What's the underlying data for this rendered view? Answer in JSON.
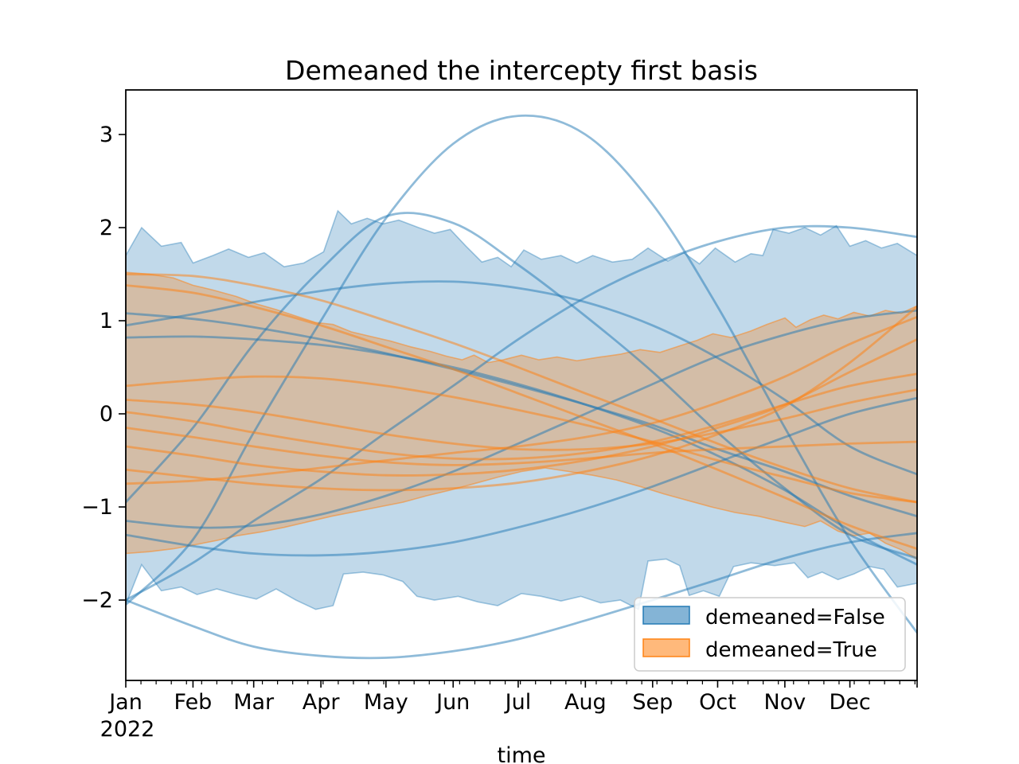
{
  "title": "Demeaned the intercepty first basis",
  "xlabel": "time",
  "x_year_label": "2022",
  "legend": {
    "items": [
      {
        "label": "demeaned=False",
        "color": "#1f77b4"
      },
      {
        "label": "demeaned=True",
        "color": "#ff7f0e"
      }
    ]
  },
  "chart_data": {
    "type": "area",
    "title": "Demeaned the intercepty first basis",
    "xlabel": "time",
    "x_axis": {
      "year": "2022",
      "tick_labels": [
        "Jan",
        "Feb",
        "Mar",
        "Apr",
        "May",
        "Jun",
        "Jul",
        "Aug",
        "Sep",
        "Oct",
        "Nov",
        "Dec"
      ],
      "month_start_days": [
        0,
        31,
        59,
        90,
        120,
        151,
        181,
        212,
        243,
        273,
        304,
        334,
        365
      ],
      "days_in_year": 365,
      "minor_tick_interval_days": 7
    },
    "y_axis": {
      "ticks": [
        -2,
        -1,
        0,
        1,
        2,
        3
      ],
      "view_range": [
        -2.86,
        3.48
      ],
      "grid": false
    },
    "colors": {
      "false_series": "#1f77b4",
      "true_series": "#ff7f0e"
    },
    "legend_position": "lower right",
    "bands": [
      {
        "name": "demeaned=False",
        "color": "#1f77b4",
        "fill_alpha": 0.28,
        "edge_alpha": 0.4,
        "upper": [
          [
            0,
            1.7
          ],
          [
            0.02,
            2.0
          ],
          [
            0.045,
            1.8
          ],
          [
            0.07,
            1.84
          ],
          [
            0.085,
            1.62
          ],
          [
            0.11,
            1.7
          ],
          [
            0.13,
            1.77
          ],
          [
            0.155,
            1.68
          ],
          [
            0.175,
            1.73
          ],
          [
            0.2,
            1.58
          ],
          [
            0.225,
            1.62
          ],
          [
            0.25,
            1.74
          ],
          [
            0.268,
            2.18
          ],
          [
            0.285,
            2.04
          ],
          [
            0.305,
            2.1
          ],
          [
            0.325,
            2.04
          ],
          [
            0.345,
            2.08
          ],
          [
            0.37,
            2.0
          ],
          [
            0.39,
            1.94
          ],
          [
            0.41,
            1.98
          ],
          [
            0.43,
            1.8
          ],
          [
            0.45,
            1.63
          ],
          [
            0.47,
            1.68
          ],
          [
            0.487,
            1.58
          ],
          [
            0.503,
            1.76
          ],
          [
            0.525,
            1.66
          ],
          [
            0.55,
            1.7
          ],
          [
            0.57,
            1.62
          ],
          [
            0.59,
            1.7
          ],
          [
            0.615,
            1.63
          ],
          [
            0.64,
            1.66
          ],
          [
            0.66,
            1.78
          ],
          [
            0.685,
            1.64
          ],
          [
            0.705,
            1.73
          ],
          [
            0.725,
            1.61
          ],
          [
            0.745,
            1.78
          ],
          [
            0.77,
            1.63
          ],
          [
            0.79,
            1.72
          ],
          [
            0.805,
            1.7
          ],
          [
            0.818,
            1.98
          ],
          [
            0.838,
            1.94
          ],
          [
            0.858,
            2.0
          ],
          [
            0.878,
            1.92
          ],
          [
            0.898,
            2.02
          ],
          [
            0.915,
            1.8
          ],
          [
            0.935,
            1.86
          ],
          [
            0.955,
            1.78
          ],
          [
            0.975,
            1.83
          ],
          [
            1.0,
            1.7
          ]
        ],
        "lower": [
          [
            0,
            -2.05
          ],
          [
            0.02,
            -1.62
          ],
          [
            0.045,
            -1.9
          ],
          [
            0.07,
            -1.86
          ],
          [
            0.09,
            -1.94
          ],
          [
            0.115,
            -1.88
          ],
          [
            0.14,
            -1.94
          ],
          [
            0.165,
            -1.99
          ],
          [
            0.19,
            -1.88
          ],
          [
            0.215,
            -2.0
          ],
          [
            0.24,
            -2.1
          ],
          [
            0.262,
            -2.06
          ],
          [
            0.275,
            -1.72
          ],
          [
            0.3,
            -1.7
          ],
          [
            0.325,
            -1.73
          ],
          [
            0.35,
            -1.8
          ],
          [
            0.368,
            -1.96
          ],
          [
            0.39,
            -2.0
          ],
          [
            0.42,
            -1.96
          ],
          [
            0.445,
            -2.02
          ],
          [
            0.47,
            -2.06
          ],
          [
            0.5,
            -1.93
          ],
          [
            0.525,
            -1.96
          ],
          [
            0.55,
            -2.01
          ],
          [
            0.575,
            -1.96
          ],
          [
            0.6,
            -2.03
          ],
          [
            0.625,
            -2.0
          ],
          [
            0.648,
            -2.1
          ],
          [
            0.66,
            -1.58
          ],
          [
            0.683,
            -1.56
          ],
          [
            0.7,
            -1.63
          ],
          [
            0.712,
            -1.95
          ],
          [
            0.73,
            -1.9
          ],
          [
            0.75,
            -1.96
          ],
          [
            0.768,
            -1.64
          ],
          [
            0.79,
            -1.6
          ],
          [
            0.82,
            -1.63
          ],
          [
            0.845,
            -1.6
          ],
          [
            0.862,
            -1.76
          ],
          [
            0.88,
            -1.7
          ],
          [
            0.9,
            -1.78
          ],
          [
            0.92,
            -1.72
          ],
          [
            0.94,
            -1.64
          ],
          [
            0.958,
            -1.67
          ],
          [
            0.975,
            -1.86
          ],
          [
            1.0,
            -1.82
          ]
        ]
      },
      {
        "name": "demeaned=True",
        "color": "#ff7f0e",
        "fill_alpha": 0.3,
        "edge_alpha": 0.5,
        "upper": [
          [
            0,
            1.52
          ],
          [
            0.03,
            1.5
          ],
          [
            0.06,
            1.46
          ],
          [
            0.085,
            1.38
          ],
          [
            0.11,
            1.33
          ],
          [
            0.14,
            1.26
          ],
          [
            0.165,
            1.18
          ],
          [
            0.19,
            1.12
          ],
          [
            0.215,
            1.05
          ],
          [
            0.24,
            0.98
          ],
          [
            0.262,
            0.96
          ],
          [
            0.285,
            0.88
          ],
          [
            0.31,
            0.83
          ],
          [
            0.335,
            0.78
          ],
          [
            0.36,
            0.72
          ],
          [
            0.385,
            0.67
          ],
          [
            0.405,
            0.62
          ],
          [
            0.425,
            0.58
          ],
          [
            0.44,
            0.63
          ],
          [
            0.458,
            0.55
          ],
          [
            0.477,
            0.58
          ],
          [
            0.5,
            0.63
          ],
          [
            0.522,
            0.58
          ],
          [
            0.545,
            0.61
          ],
          [
            0.57,
            0.57
          ],
          [
            0.6,
            0.61
          ],
          [
            0.625,
            0.64
          ],
          [
            0.65,
            0.69
          ],
          [
            0.675,
            0.66
          ],
          [
            0.7,
            0.73
          ],
          [
            0.722,
            0.79
          ],
          [
            0.742,
            0.86
          ],
          [
            0.765,
            0.82
          ],
          [
            0.79,
            0.89
          ],
          [
            0.81,
            0.96
          ],
          [
            0.833,
            1.03
          ],
          [
            0.847,
            0.93
          ],
          [
            0.865,
            1.01
          ],
          [
            0.882,
            1.06
          ],
          [
            0.9,
            1.02
          ],
          [
            0.92,
            1.09
          ],
          [
            0.94,
            1.05
          ],
          [
            0.96,
            1.11
          ],
          [
            0.98,
            1.08
          ],
          [
            1.0,
            1.16
          ]
        ],
        "lower": [
          [
            0,
            -1.5
          ],
          [
            0.03,
            -1.48
          ],
          [
            0.06,
            -1.45
          ],
          [
            0.085,
            -1.41
          ],
          [
            0.115,
            -1.36
          ],
          [
            0.14,
            -1.31
          ],
          [
            0.17,
            -1.27
          ],
          [
            0.2,
            -1.22
          ],
          [
            0.23,
            -1.16
          ],
          [
            0.26,
            -1.1
          ],
          [
            0.29,
            -1.05
          ],
          [
            0.32,
            -1.0
          ],
          [
            0.35,
            -0.95
          ],
          [
            0.38,
            -0.88
          ],
          [
            0.41,
            -0.82
          ],
          [
            0.44,
            -0.75
          ],
          [
            0.47,
            -0.68
          ],
          [
            0.5,
            -0.62
          ],
          [
            0.53,
            -0.58
          ],
          [
            0.56,
            -0.62
          ],
          [
            0.59,
            -0.66
          ],
          [
            0.62,
            -0.71
          ],
          [
            0.65,
            -0.78
          ],
          [
            0.68,
            -0.86
          ],
          [
            0.71,
            -0.93
          ],
          [
            0.74,
            -1.0
          ],
          [
            0.77,
            -1.06
          ],
          [
            0.8,
            -1.1
          ],
          [
            0.83,
            -1.16
          ],
          [
            0.858,
            -1.21
          ],
          [
            0.878,
            -1.15
          ],
          [
            0.9,
            -1.26
          ],
          [
            0.92,
            -1.31
          ],
          [
            0.94,
            -1.28
          ],
          [
            0.96,
            -1.39
          ],
          [
            0.98,
            -1.46
          ],
          [
            1.0,
            -1.56
          ]
        ]
      }
    ],
    "curves": [
      {
        "group": "demeaned=False",
        "color": "#1f77b4",
        "monthly_values": [
          -2.05,
          -1.35,
          -0.2,
          1.0,
          2.1,
          2.9,
          3.2,
          3.0,
          2.25,
          1.15,
          -0.15,
          -1.35,
          -2.35
        ]
      },
      {
        "group": "demeaned=False",
        "color": "#1f77b4",
        "monthly_values": [
          -2.0,
          -2.28,
          -2.5,
          -2.6,
          -2.62,
          -2.55,
          -2.42,
          -2.22,
          -2.0,
          -1.78,
          -1.55,
          -1.38,
          -1.28
        ]
      },
      {
        "group": "demeaned=False",
        "color": "#1f77b4",
        "monthly_values": [
          -0.95,
          -0.15,
          0.75,
          1.55,
          2.12,
          2.05,
          1.6,
          1.05,
          0.45,
          -0.2,
          -0.8,
          -1.3,
          -1.55
        ]
      },
      {
        "group": "demeaned=False",
        "color": "#1f77b4",
        "monthly_values": [
          -2.0,
          -1.6,
          -1.15,
          -0.7,
          -0.2,
          0.3,
          0.8,
          1.25,
          1.6,
          1.85,
          2.0,
          2.0,
          1.9
        ]
      },
      {
        "group": "demeaned=False",
        "color": "#1f77b4",
        "monthly_values": [
          0.95,
          1.07,
          1.2,
          1.32,
          1.4,
          1.42,
          1.35,
          1.2,
          0.95,
          0.6,
          0.15,
          -0.35,
          -0.65
        ]
      },
      {
        "group": "demeaned=False",
        "color": "#1f77b4",
        "monthly_values": [
          1.08,
          1.02,
          0.93,
          0.8,
          0.65,
          0.48,
          0.3,
          0.1,
          -0.12,
          -0.38,
          -0.62,
          -0.88,
          -1.1
        ]
      },
      {
        "group": "demeaned=False",
        "color": "#1f77b4",
        "monthly_values": [
          0.82,
          0.83,
          0.8,
          0.74,
          0.64,
          0.5,
          0.32,
          0.1,
          -0.15,
          -0.45,
          -0.82,
          -1.25,
          -1.62
        ]
      },
      {
        "group": "demeaned=False",
        "color": "#1f77b4",
        "monthly_values": [
          -1.15,
          -1.22,
          -1.2,
          -1.08,
          -0.88,
          -0.62,
          -0.32,
          0.0,
          0.32,
          0.62,
          0.85,
          1.02,
          1.11
        ]
      },
      {
        "group": "demeaned=False",
        "color": "#1f77b4",
        "monthly_values": [
          -1.3,
          -1.42,
          -1.5,
          -1.52,
          -1.48,
          -1.38,
          -1.22,
          -1.02,
          -0.78,
          -0.52,
          -0.25,
          0.0,
          0.17
        ]
      },
      {
        "group": "demeaned=True",
        "color": "#ff7f0e",
        "monthly_values": [
          1.5,
          1.48,
          1.38,
          1.22,
          1.0,
          0.76,
          0.5,
          0.22,
          -0.05,
          -0.32,
          -0.58,
          -0.8,
          -0.95
        ]
      },
      {
        "group": "demeaned=True",
        "color": "#ff7f0e",
        "monthly_values": [
          1.38,
          1.3,
          1.15,
          0.95,
          0.72,
          0.48,
          0.22,
          -0.05,
          -0.32,
          -0.6,
          -0.9,
          -1.2,
          -1.45
        ]
      },
      {
        "group": "demeaned=True",
        "color": "#ff7f0e",
        "monthly_values": [
          0.3,
          0.36,
          0.4,
          0.38,
          0.3,
          0.18,
          0.04,
          -0.12,
          -0.3,
          -0.5,
          -0.68,
          -0.85,
          -0.95
        ]
      },
      {
        "group": "demeaned=True",
        "color": "#ff7f0e",
        "monthly_values": [
          0.15,
          0.1,
          0.02,
          -0.1,
          -0.22,
          -0.32,
          -0.38,
          -0.38,
          -0.32,
          -0.2,
          -0.05,
          0.12,
          0.26
        ]
      },
      {
        "group": "demeaned=True",
        "color": "#ff7f0e",
        "monthly_values": [
          0.02,
          -0.08,
          -0.2,
          -0.32,
          -0.42,
          -0.48,
          -0.48,
          -0.42,
          -0.3,
          -0.12,
          0.1,
          0.3,
          0.43
        ]
      },
      {
        "group": "demeaned=True",
        "color": "#ff7f0e",
        "monthly_values": [
          -0.15,
          -0.25,
          -0.35,
          -0.45,
          -0.52,
          -0.55,
          -0.53,
          -0.48,
          -0.42,
          -0.38,
          -0.35,
          -0.32,
          -0.3
        ]
      },
      {
        "group": "demeaned=True",
        "color": "#ff7f0e",
        "monthly_values": [
          -0.35,
          -0.45,
          -0.55,
          -0.62,
          -0.66,
          -0.65,
          -0.6,
          -0.5,
          -0.35,
          -0.15,
          0.1,
          0.45,
          0.8
        ]
      },
      {
        "group": "demeaned=True",
        "color": "#ff7f0e",
        "monthly_values": [
          -0.75,
          -0.72,
          -0.66,
          -0.58,
          -0.5,
          -0.42,
          -0.35,
          -0.25,
          -0.1,
          0.12,
          0.4,
          0.75,
          1.04
        ]
      },
      {
        "group": "demeaned=True",
        "color": "#ff7f0e",
        "monthly_values": [
          -0.6,
          -0.68,
          -0.75,
          -0.8,
          -0.82,
          -0.8,
          -0.74,
          -0.62,
          -0.45,
          -0.22,
          0.08,
          0.55,
          1.15
        ]
      }
    ]
  }
}
